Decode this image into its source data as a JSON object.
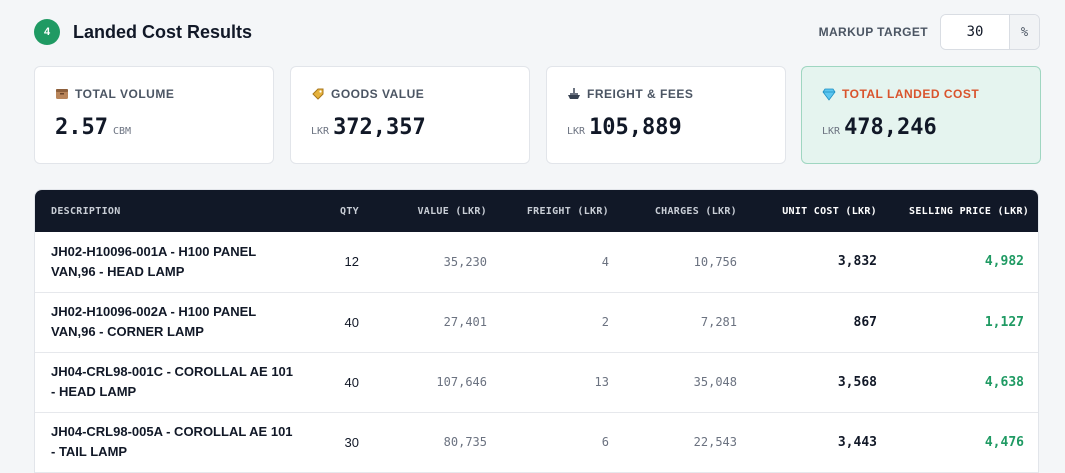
{
  "header": {
    "step_number": "4",
    "title": "Landed Cost Results",
    "markup_label": "MARKUP TARGET",
    "markup_value": "30",
    "markup_suffix": "%"
  },
  "cards": [
    {
      "label": "TOTAL VOLUME",
      "prefix": "",
      "value": "2.57",
      "suffix": "CBM",
      "icon": "box-icon"
    },
    {
      "label": "GOODS VALUE",
      "prefix": "LKR",
      "value": "372,357",
      "suffix": "",
      "icon": "price-tag-icon"
    },
    {
      "label": "FREIGHT & FEES",
      "prefix": "LKR",
      "value": "105,889",
      "suffix": "",
      "icon": "ship-icon"
    },
    {
      "label": "TOTAL LANDED COST",
      "prefix": "LKR",
      "value": "478,246",
      "suffix": "",
      "icon": "gem-icon"
    }
  ],
  "colors": {
    "accent_green": "#1f9a63",
    "accent_orange": "#d9532c",
    "table_header_bg": "#111827"
  },
  "table": {
    "columns": [
      "DESCRIPTION",
      "QTY",
      "VALUE (LKR)",
      "FREIGHT (LKR)",
      "CHARGES (LKR)",
      "UNIT COST (LKR)",
      "SELLING PRICE (LKR)"
    ],
    "rows": [
      {
        "desc1": "JH02-H10096-001A - H100 PANEL",
        "desc2": "VAN,96 - HEAD LAMP",
        "qty": "12",
        "value": "35,230",
        "freight": "4",
        "charges": "10,756",
        "unit": "3,832",
        "sell": "4,982"
      },
      {
        "desc1": "JH02-H10096-002A - H100 PANEL",
        "desc2": "VAN,96 - CORNER LAMP",
        "qty": "40",
        "value": "27,401",
        "freight": "2",
        "charges": "7,281",
        "unit": "867",
        "sell": "1,127"
      },
      {
        "desc1": "JH04-CRL98-001C - COROLLAL AE 101",
        "desc2": "- HEAD LAMP",
        "qty": "40",
        "value": "107,646",
        "freight": "13",
        "charges": "35,048",
        "unit": "3,568",
        "sell": "4,638"
      },
      {
        "desc1": "JH04-CRL98-005A - COROLLAL AE 101",
        "desc2": "- TAIL LAMP",
        "qty": "30",
        "value": "80,735",
        "freight": "6",
        "charges": "22,543",
        "unit": "3,443",
        "sell": "4,476"
      }
    ]
  }
}
